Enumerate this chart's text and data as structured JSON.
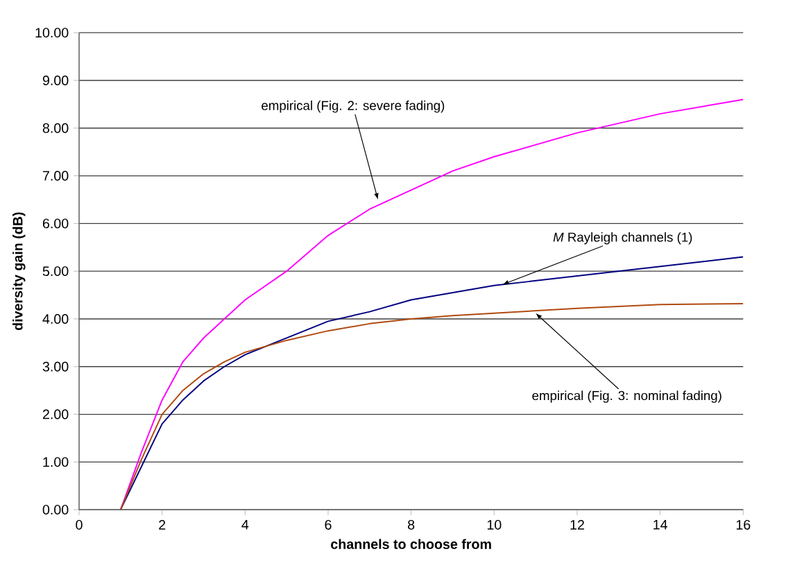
{
  "chart_data": {
    "type": "line",
    "xlabel": "channels to choose from",
    "ylabel": "diversity gain (dB)",
    "x": [
      1,
      1.5,
      2,
      2.5,
      3,
      3.5,
      4,
      5,
      6,
      7,
      8,
      9,
      10,
      12,
      14,
      16
    ],
    "series": [
      {
        "color": "#ff00ff",
        "values": [
          0,
          1.2,
          2.3,
          3.1,
          3.6,
          4.0,
          4.4,
          5.0,
          5.75,
          6.3,
          6.7,
          7.1,
          7.4,
          7.9,
          8.3,
          8.6
        ]
      },
      {
        "color": "#000080",
        "values": [
          0,
          0.9,
          1.8,
          2.3,
          2.7,
          3.0,
          3.25,
          3.6,
          3.95,
          4.15,
          4.4,
          4.55,
          4.7,
          4.9,
          5.1,
          5.3
        ]
      },
      {
        "color": "#b04a10",
        "values": [
          0,
          1.05,
          2.0,
          2.5,
          2.85,
          3.1,
          3.3,
          3.55,
          3.75,
          3.9,
          4.0,
          4.07,
          4.12,
          4.22,
          4.3,
          4.32
        ]
      }
    ],
    "xlim": [
      0,
      16
    ],
    "xticks": [
      0,
      2,
      4,
      6,
      8,
      10,
      12,
      14,
      16
    ],
    "ylim": [
      0,
      10
    ],
    "yticks": [
      {
        "value": 0,
        "label": "0.00"
      },
      {
        "value": 1,
        "label": "1.00"
      },
      {
        "value": 2,
        "label": "2.00"
      },
      {
        "value": 3,
        "label": "3.00"
      },
      {
        "value": 4,
        "label": "4.00"
      },
      {
        "value": 5,
        "label": "5.00"
      },
      {
        "value": 6,
        "label": "6.00"
      },
      {
        "value": 7,
        "label": "7.00"
      },
      {
        "value": 8,
        "label": "8.00"
      },
      {
        "value": 9,
        "label": "9.00"
      },
      {
        "value": 10,
        "label": "10.00"
      }
    ],
    "grid": "y",
    "marker": "none",
    "line_style": "solid",
    "annotations": [
      {
        "text": "empirical (Fig. 2: severe fading)",
        "x": 7.2,
        "y": 6.5
      },
      {
        "text": "*M* Rayleigh channels (1)",
        "x": 10.2,
        "y": 4.72
      },
      {
        "text": "empirical (Fig. 3: nominal fading)",
        "x": 11.0,
        "y": 4.12
      }
    ]
  }
}
